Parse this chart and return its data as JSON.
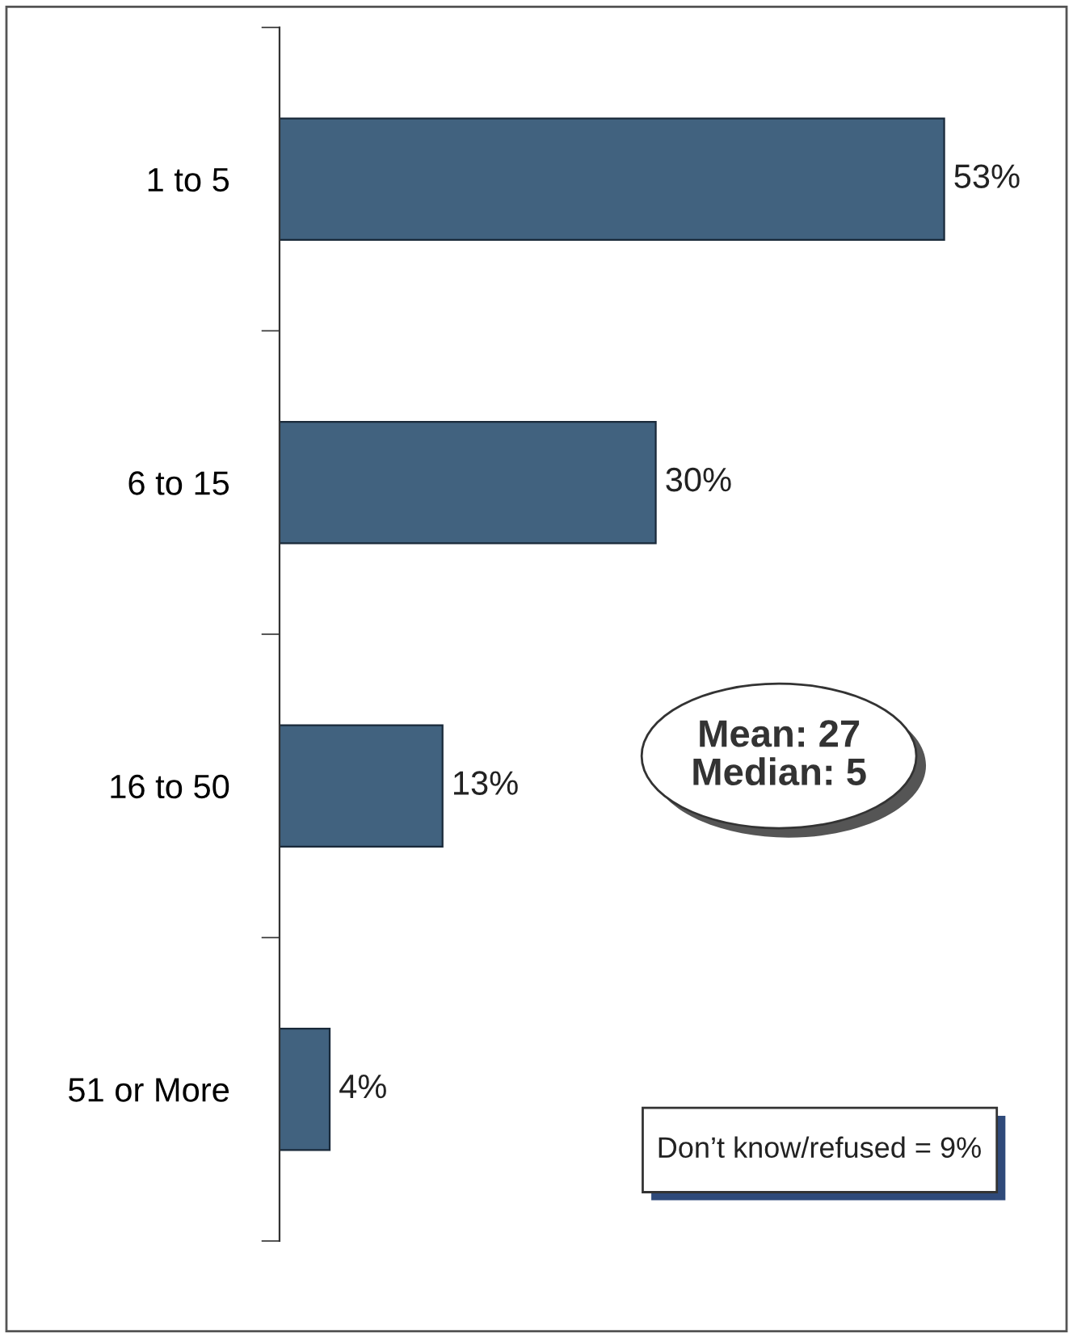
{
  "chart_data": {
    "type": "bar",
    "orientation": "horizontal",
    "categories": [
      "1 to 5",
      "6 to 15",
      "16 to 50",
      "51 or More"
    ],
    "values": [
      53,
      30,
      13,
      4
    ],
    "value_labels": [
      "53%",
      "30%",
      "13%",
      "4%"
    ],
    "color": "#41627f",
    "annotations": [
      "Mean: 27\nMedian: 5",
      "Don’t know/refused = 9%"
    ],
    "grid": false,
    "legend": false
  }
}
